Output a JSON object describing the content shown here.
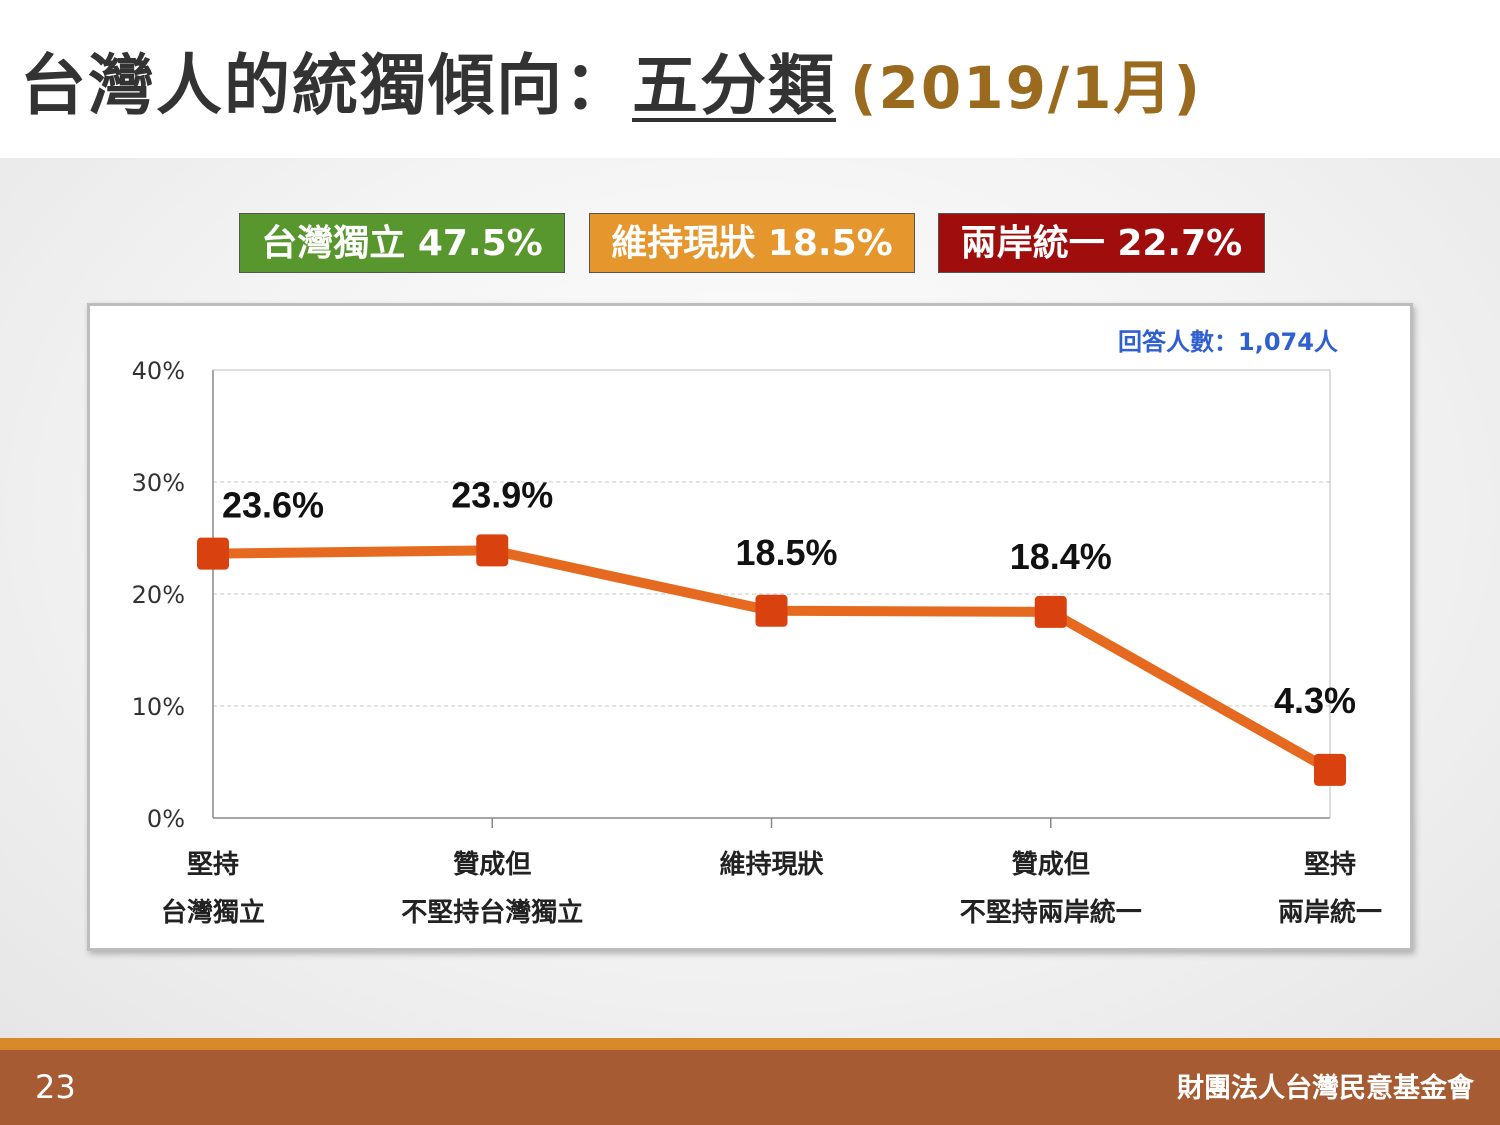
{
  "title": {
    "main": "台灣人的統獨傾向：",
    "emphasis": "五分類",
    "date": "(2019/1月)"
  },
  "legend": [
    {
      "label": "台灣獨立 47.5%",
      "color": "#58962e"
    },
    {
      "label": "維持現狀 18.5%",
      "color": "#e5962c"
    },
    {
      "label": "兩岸統一 22.7%",
      "color": "#9f0d0d"
    }
  ],
  "respondents": "回答人數：1,074人",
  "chart_data": {
    "type": "line",
    "categories": [
      [
        "堅持",
        "台灣獨立"
      ],
      [
        "贊成但",
        "不堅持台灣獨立"
      ],
      [
        "維持現狀"
      ],
      [
        "贊成但",
        "不堅持兩岸統一"
      ],
      [
        "堅持",
        "兩岸統一"
      ]
    ],
    "values": [
      23.6,
      23.9,
      18.5,
      18.4,
      4.3
    ],
    "data_labels": [
      "23.6%",
      "23.9%",
      "18.5%",
      "18.4%",
      "4.3%"
    ],
    "yticks": [
      "0%",
      "10%",
      "20%",
      "30%",
      "40%"
    ],
    "ylim": [
      0,
      40
    ],
    "line_color": "#e56a1f",
    "marker_color": "#d9410e",
    "grid": true
  },
  "footer": {
    "page": "23",
    "org": "財團法人台灣民意基金會"
  }
}
